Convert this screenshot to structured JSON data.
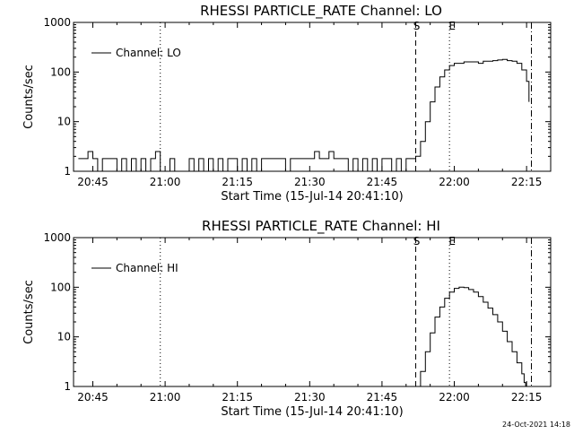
{
  "footer": {
    "timestamp": "24-Oct-2021 14:18"
  },
  "chart_data": [
    {
      "type": "line",
      "title": "RHESSI PARTICLE_RATE Channel: LO",
      "xlabel": "Start Time (15-Jul-14 20:41:10)",
      "ylabel": "Counts/sec",
      "y_scale": "log",
      "xlim": [
        "20:41",
        "22:20"
      ],
      "ylim": [
        1,
        1000
      ],
      "x_tick_labels": [
        "20:45",
        "21:00",
        "21:15",
        "21:30",
        "21:45",
        "22:00",
        "22:15"
      ],
      "y_tick_labels": [
        "1",
        "10",
        "100",
        "1000"
      ],
      "legend": {
        "position": "top-left",
        "entries": [
          "Channel: LO"
        ]
      },
      "markers": [
        {
          "label": "",
          "time": "20:59",
          "style": "dotted"
        },
        {
          "label": "S",
          "time": "21:52",
          "style": "dashed"
        },
        {
          "label": "E",
          "time": "21:59",
          "style": "dotted"
        },
        {
          "label": "",
          "time": "22:16",
          "style": "dash-dot"
        }
      ],
      "series": [
        {
          "name": "Channel: LO",
          "pattern": "quiet background flickering between 1 and 2 counts/sec with spikes to ~2.5",
          "points": [
            [
              "20:42",
              1.8
            ],
            [
              "20:43",
              1.8
            ],
            [
              "20:44",
              2.5
            ],
            [
              "20:45",
              1.8
            ],
            [
              "20:46",
              1.0
            ],
            [
              "20:47",
              1.8
            ],
            [
              "20:48",
              1.8
            ],
            [
              "20:49",
              1.8
            ],
            [
              "20:50",
              1.0
            ],
            [
              "20:51",
              1.8
            ],
            [
              "20:52",
              1.0
            ],
            [
              "20:53",
              1.8
            ],
            [
              "20:54",
              1.0
            ],
            [
              "20:55",
              1.8
            ],
            [
              "20:56",
              1.0
            ],
            [
              "20:57",
              1.8
            ],
            [
              "20:58",
              2.5
            ],
            [
              "20:59",
              1.0
            ],
            [
              "21:00",
              1.0
            ],
            [
              "21:01",
              1.8
            ],
            [
              "21:02",
              1.0
            ],
            [
              "21:03",
              1.0
            ],
            [
              "21:05",
              1.8
            ],
            [
              "21:06",
              1.0
            ],
            [
              "21:07",
              1.8
            ],
            [
              "21:08",
              1.0
            ],
            [
              "21:09",
              1.8
            ],
            [
              "21:10",
              1.0
            ],
            [
              "21:11",
              1.8
            ],
            [
              "21:12",
              1.0
            ],
            [
              "21:13",
              1.8
            ],
            [
              "21:14",
              1.8
            ],
            [
              "21:15",
              1.0
            ],
            [
              "21:16",
              1.8
            ],
            [
              "21:17",
              1.0
            ],
            [
              "21:18",
              1.8
            ],
            [
              "21:19",
              1.0
            ],
            [
              "21:20",
              1.8
            ],
            [
              "21:22",
              1.8
            ],
            [
              "21:24",
              1.8
            ],
            [
              "21:25",
              1.0
            ],
            [
              "21:26",
              1.8
            ],
            [
              "21:28",
              1.8
            ],
            [
              "21:30",
              1.8
            ],
            [
              "21:31",
              2.5
            ],
            [
              "21:32",
              1.8
            ],
            [
              "21:33",
              1.8
            ],
            [
              "21:34",
              2.5
            ],
            [
              "21:35",
              1.8
            ],
            [
              "21:36",
              1.8
            ],
            [
              "21:37",
              1.8
            ],
            [
              "21:38",
              1.0
            ],
            [
              "21:39",
              1.8
            ],
            [
              "21:40",
              1.0
            ],
            [
              "21:41",
              1.8
            ],
            [
              "21:42",
              1.0
            ],
            [
              "21:43",
              1.8
            ],
            [
              "21:44",
              1.0
            ],
            [
              "21:45",
              1.8
            ],
            [
              "21:46",
              1.8
            ],
            [
              "21:47",
              1.0
            ],
            [
              "21:48",
              1.8
            ],
            [
              "21:49",
              1.0
            ],
            [
              "21:50",
              1.8
            ],
            [
              "21:51",
              1.8
            ],
            [
              "21:52",
              2.0
            ],
            [
              "21:53",
              4.0
            ],
            [
              "21:54",
              10.0
            ],
            [
              "21:55",
              25.0
            ],
            [
              "21:56",
              50.0
            ],
            [
              "21:57",
              80.0
            ],
            [
              "21:58",
              110.0
            ],
            [
              "21:59",
              135.0
            ],
            [
              "22:00",
              150.0
            ],
            [
              "22:02",
              160.0
            ],
            [
              "22:04",
              160.0
            ],
            [
              "22:05",
              150.0
            ],
            [
              "22:06",
              165.0
            ],
            [
              "22:08",
              170.0
            ],
            [
              "22:09",
              175.0
            ],
            [
              "22:10",
              180.0
            ],
            [
              "22:11",
              170.0
            ],
            [
              "22:12",
              165.0
            ],
            [
              "22:13",
              150.0
            ],
            [
              "22:14",
              110.0
            ],
            [
              "22:15",
              65.0
            ],
            [
              "22:15.5",
              25.0
            ]
          ]
        }
      ]
    },
    {
      "type": "line",
      "title": "RHESSI PARTICLE_RATE Channel: HI",
      "xlabel": "Start Time (15-Jul-14 20:41:10)",
      "ylabel": "Counts/sec",
      "y_scale": "log",
      "xlim": [
        "20:41",
        "22:20"
      ],
      "ylim": [
        1,
        1000
      ],
      "x_tick_labels": [
        "20:45",
        "21:00",
        "21:15",
        "21:30",
        "21:45",
        "22:00",
        "22:15"
      ],
      "y_tick_labels": [
        "1",
        "10",
        "100",
        "1000"
      ],
      "legend": {
        "position": "top-left",
        "entries": [
          "Channel: HI"
        ]
      },
      "markers": [
        {
          "label": "",
          "time": "20:59",
          "style": "dotted"
        },
        {
          "label": "S",
          "time": "21:52",
          "style": "dashed"
        },
        {
          "label": "E",
          "time": "21:59",
          "style": "dotted"
        },
        {
          "label": "",
          "time": "22:16",
          "style": "dash-dot"
        }
      ],
      "series": [
        {
          "name": "Channel: HI",
          "points": [
            [
              "21:52.5",
              1.0
            ],
            [
              "21:53",
              2.0
            ],
            [
              "21:54",
              5.0
            ],
            [
              "21:55",
              12.0
            ],
            [
              "21:56",
              25.0
            ],
            [
              "21:57",
              40.0
            ],
            [
              "21:58",
              60.0
            ],
            [
              "21:59",
              80.0
            ],
            [
              "22:00",
              95.0
            ],
            [
              "22:01",
              100.0
            ],
            [
              "22:02",
              98.0
            ],
            [
              "22:03",
              90.0
            ],
            [
              "22:04",
              80.0
            ],
            [
              "22:05",
              65.0
            ],
            [
              "22:06",
              50.0
            ],
            [
              "22:07",
              38.0
            ],
            [
              "22:08",
              28.0
            ],
            [
              "22:09",
              20.0
            ],
            [
              "22:10",
              13.0
            ],
            [
              "22:11",
              8.0
            ],
            [
              "22:12",
              5.0
            ],
            [
              "22:13",
              3.0
            ],
            [
              "22:14",
              1.8
            ],
            [
              "22:14.5",
              1.2
            ],
            [
              "22:14.8",
              1.0
            ]
          ]
        }
      ]
    }
  ]
}
